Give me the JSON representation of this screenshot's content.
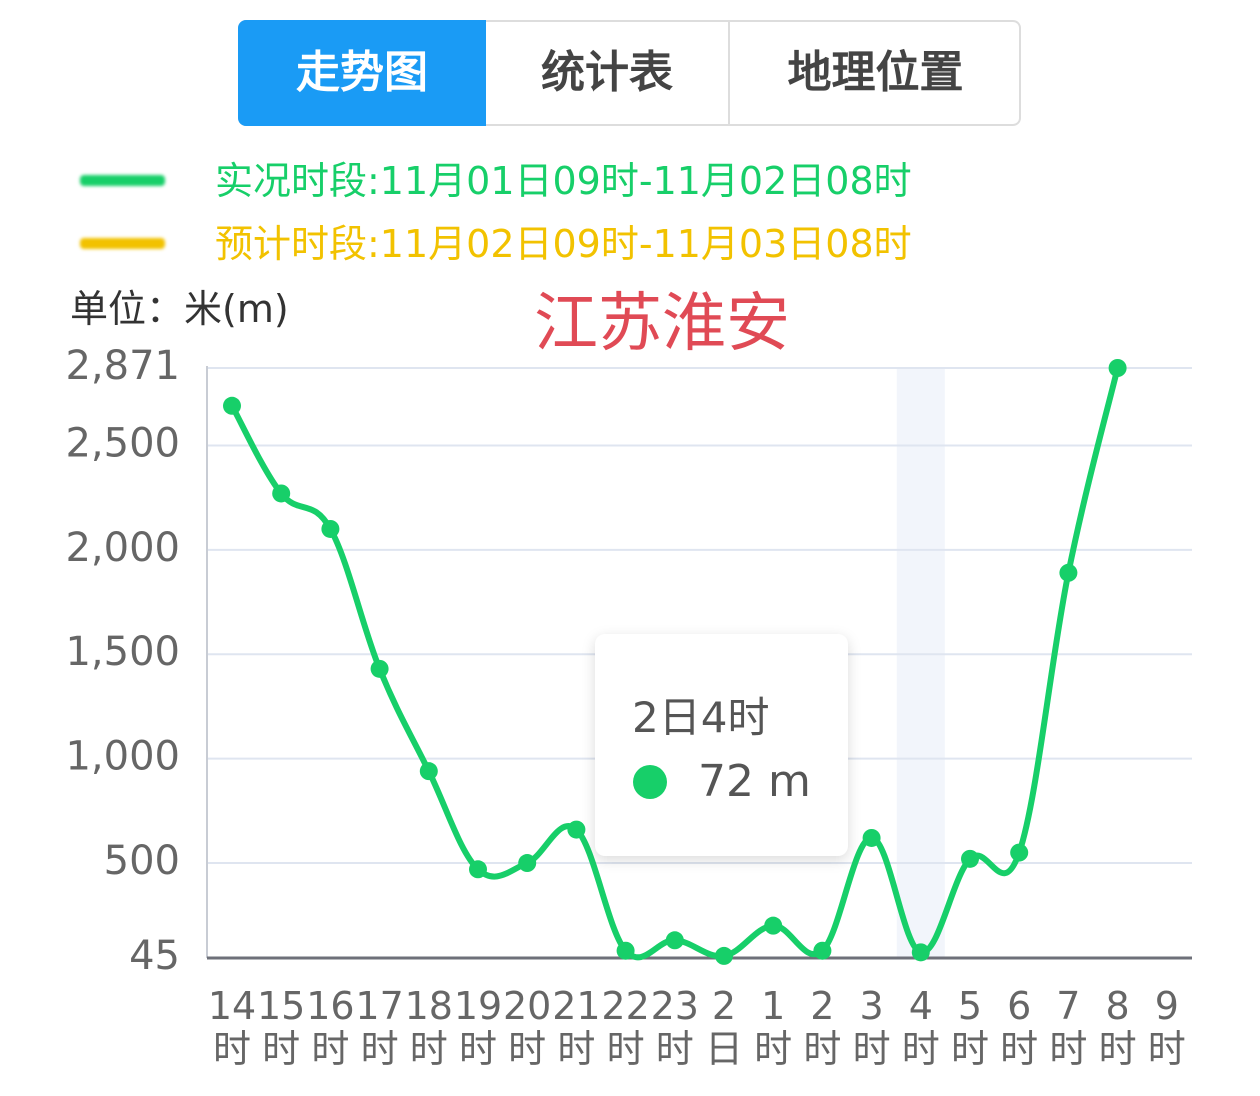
{
  "tabs": [
    "走势图",
    "统计表",
    "地理位置"
  ],
  "unit_label": "单位：米(m)",
  "chart_data": {
    "type": "line",
    "title": "江苏淮安",
    "categories": [
      "14时",
      "15时",
      "16时",
      "17时",
      "18时",
      "19时",
      "20时",
      "21时",
      "22时",
      "23时",
      "2日",
      "1时",
      "2时",
      "3时",
      "4时",
      "5时",
      "6时",
      "7时",
      "8时",
      "9时"
    ],
    "series": [
      {
        "name": "实况时段:11月01日09时-11月02日08时",
        "color": "#17cf69",
        "values": [
          2690,
          2270,
          2100,
          1430,
          940,
          470,
          500,
          660,
          80,
          130,
          55,
          200,
          80,
          620,
          72,
          520,
          550,
          1890,
          2871,
          null
        ]
      },
      {
        "name": "预计时段:11月02日09时-11月03日08时",
        "color": "#f2c200",
        "values": [
          null,
          null,
          null,
          null,
          null,
          null,
          null,
          null,
          null,
          null,
          null,
          null,
          null,
          null,
          null,
          null,
          null,
          null,
          null,
          null
        ]
      }
    ],
    "ylim": [
      45,
      2871
    ],
    "yticks": [
      45,
      500,
      {
        "value": 1000,
        "label": "1,000"
      },
      {
        "value": 1500,
        "label": "1,500"
      },
      {
        "value": 2000,
        "label": "2,000"
      },
      {
        "value": 2500,
        "label": "2,500"
      },
      {
        "value": 2871,
        "label": "2,871"
      }
    ],
    "grid": true,
    "tooltip": {
      "title": "2日4时",
      "text": "72 m"
    }
  }
}
